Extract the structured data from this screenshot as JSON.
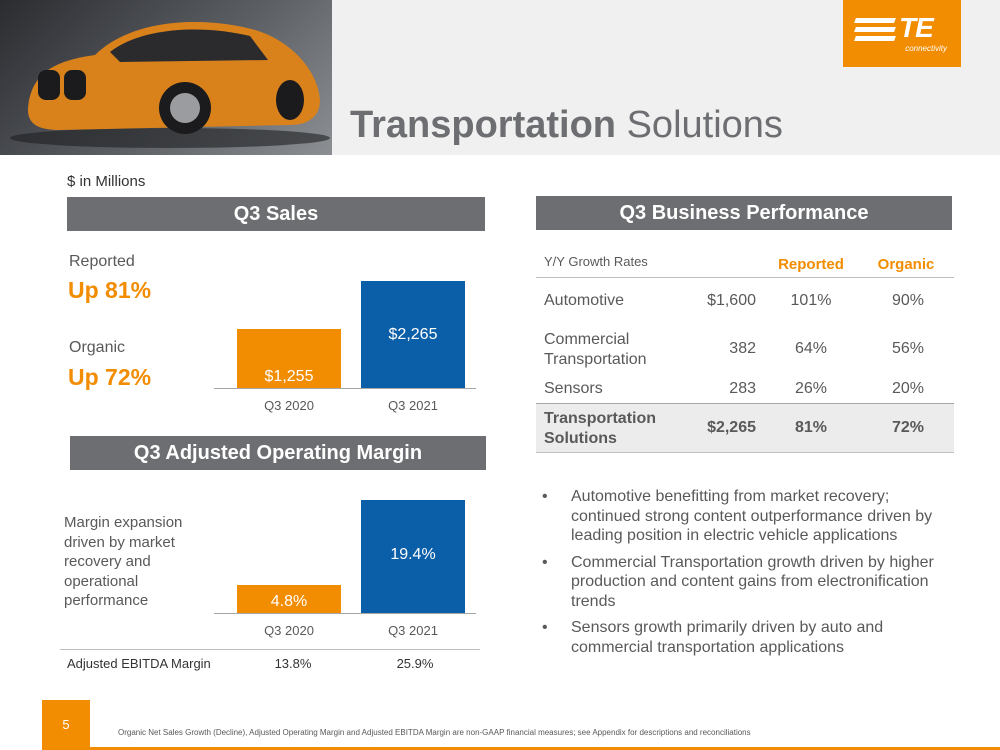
{
  "header": {
    "title_bold": "Transportation",
    "title_rest": " Solutions",
    "logo_text": "TE",
    "logo_tagline": "connectivity"
  },
  "units": "$ in Millions",
  "sales": {
    "banner": "Q3 Sales",
    "reported_label": "Reported",
    "reported_value": "Up 81%",
    "organic_label": "Organic",
    "organic_value": "Up 72%"
  },
  "margin": {
    "banner": "Q3 Adjusted Operating Margin",
    "note": "Margin expansion driven by market recovery and operational performance",
    "ebitda_label": "Adjusted EBITDA Margin",
    "ebitda_values": [
      "13.8%",
      "25.9%"
    ]
  },
  "performance": {
    "banner": "Q3 Business Performance",
    "header": {
      "label": "Y/Y Growth Rates",
      "reported": "Reported",
      "organic": "Organic"
    },
    "rows": [
      {
        "name": "Automotive",
        "sales": "$1,600",
        "reported": "101%",
        "organic": "90%"
      },
      {
        "name": "Commercial Transportation",
        "sales": "382",
        "reported": "64%",
        "organic": "56%"
      },
      {
        "name": "Sensors",
        "sales": "283",
        "reported": "26%",
        "organic": "20%"
      },
      {
        "name": "Transportation Solutions",
        "sales": "$2,265",
        "reported": "81%",
        "organic": "72%"
      }
    ]
  },
  "bullets": [
    "Automotive benefitting from market recovery; continued strong content outperformance driven by leading position in electric vehicle applications",
    "Commercial Transportation growth driven by higher production and content gains from electronification trends",
    "Sensors growth primarily driven by auto and commercial transportation applications"
  ],
  "page_number": "5",
  "footnote": "Organic Net Sales Growth (Decline), Adjusted Operating Margin and Adjusted EBITDA Margin are non-GAAP financial measures; see Appendix for descriptions and reconciliations",
  "colors": {
    "orange": "#f28c00",
    "blue": "#0b5ea8",
    "banner_gray": "#6d6e71"
  },
  "chart_data": [
    {
      "type": "bar",
      "title": "Q3 Sales",
      "categories": [
        "Q3 2020",
        "Q3 2021"
      ],
      "values": [
        1255,
        2265
      ],
      "value_labels": [
        "$1,255",
        "$2,265"
      ],
      "bar_colors": [
        "#f28c00",
        "#0b5ea8"
      ]
    },
    {
      "type": "bar",
      "title": "Q3 Adjusted Operating Margin",
      "categories": [
        "Q3 2020",
        "Q3 2021"
      ],
      "values": [
        4.8,
        19.4
      ],
      "value_labels": [
        "4.8%",
        "19.4%"
      ],
      "bar_colors": [
        "#f28c00",
        "#0b5ea8"
      ]
    }
  ]
}
